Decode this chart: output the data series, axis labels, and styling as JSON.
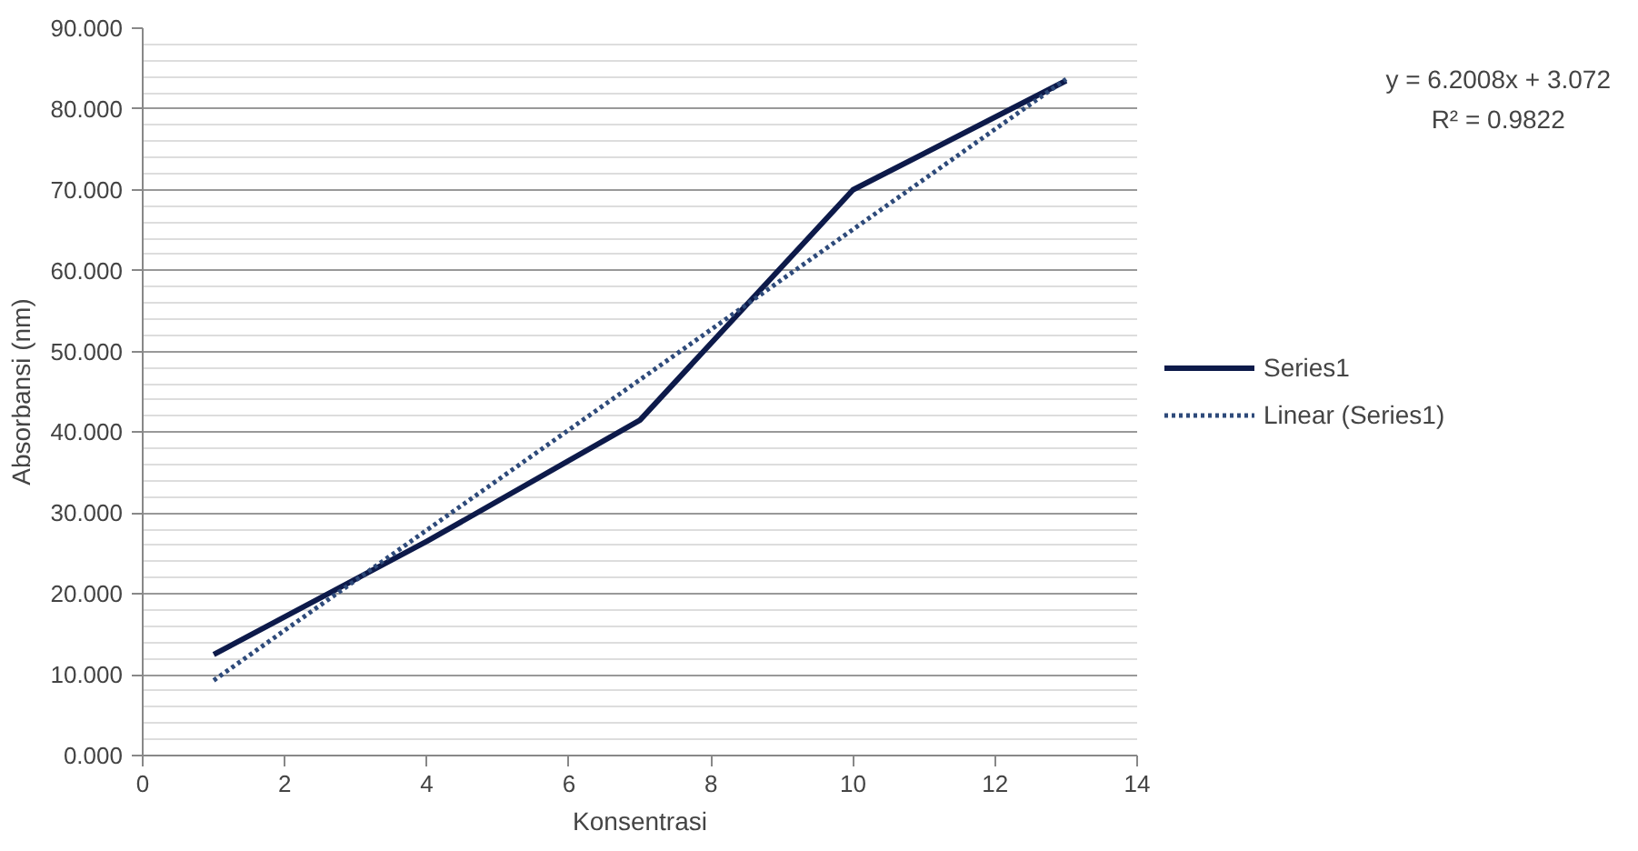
{
  "chart_data": {
    "type": "line",
    "xlabel": "Konsentrasi",
    "ylabel": "Absorbansi (nm)",
    "x": [
      1,
      4,
      7,
      10,
      13
    ],
    "series": [
      {
        "name": "Series1",
        "color": "#0d1a4a",
        "values": [
          12.5,
          26.5,
          41.5,
          70,
          83.5
        ],
        "line_style": "solid"
      },
      {
        "name": "Linear (Series1)",
        "color": "#2e4a7a",
        "type": "line",
        "x": [
          1,
          13
        ],
        "values": [
          9.3,
          83.7
        ],
        "line_style": "dotted"
      }
    ],
    "xlim": [
      0,
      14
    ],
    "xticks": [
      0,
      2,
      4,
      6,
      8,
      10,
      12,
      14
    ],
    "ylim": [
      0,
      90
    ],
    "yticks": [
      {
        "value": 0,
        "label": "0.000"
      },
      {
        "value": 10,
        "label": "10.000"
      },
      {
        "value": 20,
        "label": "20.000"
      },
      {
        "value": 30,
        "label": "30.000"
      },
      {
        "value": 40,
        "label": "40.000"
      },
      {
        "value": 50,
        "label": "50.000"
      },
      {
        "value": 60,
        "label": "60.000"
      },
      {
        "value": 70,
        "label": "70.000"
      },
      {
        "value": 80,
        "label": "80.000"
      },
      {
        "value": 90,
        "label": "90.000"
      }
    ],
    "grid": "y",
    "legend": "right",
    "marker": "none",
    "annotations": [
      "y = 6.2008x + 3.072",
      "R² = 0.9822"
    ]
  }
}
